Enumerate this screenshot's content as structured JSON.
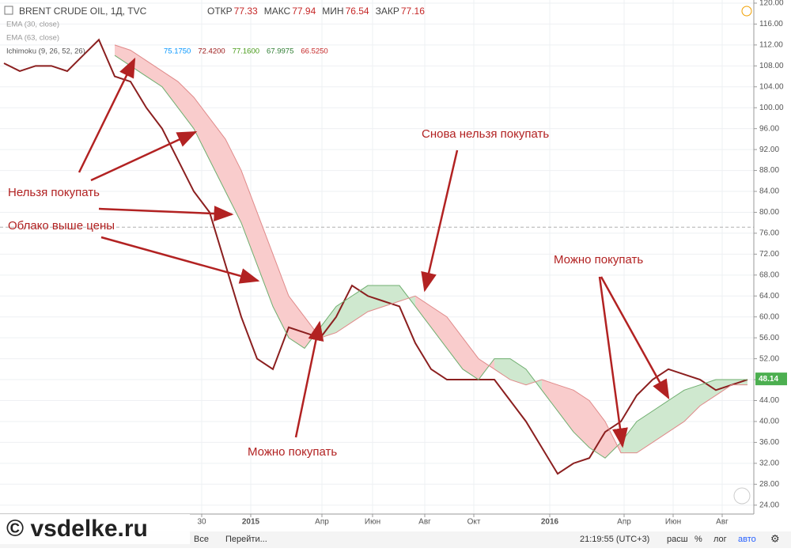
{
  "chart_data": {
    "type": "ichimoku",
    "title": "BRENT CRUDE OIL, 1Д, TVC",
    "ohlc": [
      {
        "label": "ОТКР",
        "value": 77.33
      },
      {
        "label": "МАКС",
        "value": 77.94
      },
      {
        "label": "МИН",
        "value": 76.54
      },
      {
        "label": "ЗАКР",
        "value": 77.16
      }
    ],
    "indicators": [
      {
        "label": "EMA (30, close)"
      },
      {
        "label": "EMA (63, close)"
      },
      {
        "label": "Ichimoku (9, 26, 52, 26)"
      }
    ],
    "ichimoku_values": [
      {
        "value": 75.175,
        "label": "75.1750",
        "color": "#0496ff"
      },
      {
        "value": 72.42,
        "label": "72.4200",
        "color": "#991515"
      },
      {
        "value": 77.16,
        "label": "77.1600",
        "color": "#459915"
      },
      {
        "value": 67.9975,
        "label": "67.9975",
        "color": "#2e7d32"
      },
      {
        "value": 66.525,
        "label": "66.5250",
        "color": "#c62828"
      }
    ],
    "close_level": 77.16,
    "last_price": 48.14,
    "series": [
      {
        "color": "#8b1f1f",
        "values": [
          108.5,
          107,
          108,
          108,
          107,
          110,
          113,
          106,
          105,
          100,
          96,
          90,
          84,
          80,
          70,
          60,
          52,
          50,
          58,
          57,
          56,
          60,
          66,
          64,
          63,
          62,
          55,
          50,
          48,
          48,
          48,
          48,
          44,
          40,
          35,
          30,
          32,
          33,
          38,
          40,
          45,
          48,
          50,
          49,
          48,
          46,
          47,
          48
        ]
      },
      {
        "color": "#6fae6f",
        "values": [
          null,
          null,
          null,
          null,
          null,
          null,
          null,
          110,
          108,
          106,
          104,
          100,
          96,
          90,
          84,
          78,
          70,
          62,
          56,
          54,
          58,
          62,
          64,
          66,
          66,
          66,
          62,
          58,
          54,
          50,
          48,
          52,
          52,
          50,
          46,
          42,
          38,
          35,
          33,
          36,
          40,
          42,
          44,
          46,
          47,
          48,
          48,
          48
        ]
      },
      {
        "color": "#e08a8a",
        "values": [
          null,
          null,
          null,
          null,
          null,
          null,
          null,
          112,
          111,
          109,
          107,
          105,
          102,
          98,
          94,
          88,
          80,
          72,
          64,
          60,
          56,
          57,
          59,
          61,
          62,
          63,
          64,
          62,
          60,
          56,
          52,
          50,
          48,
          47,
          48,
          47,
          46,
          44,
          40,
          34,
          34,
          36,
          38,
          40,
          43,
          45,
          47,
          47
        ]
      }
    ],
    "cloud_colors": {
      "up": "#cfe8cf",
      "down": "#f9cccc"
    },
    "xlim": [
      -0.25,
      47.25
    ],
    "xticks": [
      {
        "value": 12.5,
        "label": "30"
      },
      {
        "value": 15.6,
        "label": "2015"
      },
      {
        "value": 20.1,
        "label": "Апр"
      },
      {
        "value": 23.3,
        "label": "Июн"
      },
      {
        "value": 26.6,
        "label": "Авг"
      },
      {
        "value": 29.7,
        "label": "Окт"
      },
      {
        "value": 34.5,
        "label": "2016"
      },
      {
        "value": 39.2,
        "label": "Апр"
      },
      {
        "value": 42.3,
        "label": "Июн"
      },
      {
        "value": 45.4,
        "label": "Авг"
      }
    ],
    "ylim": [
      22.3,
      120.6
    ],
    "yticks": [
      {
        "value": 24,
        "label": "24.00"
      },
      {
        "value": 28,
        "label": "28.00"
      },
      {
        "value": 32,
        "label": "32.00"
      },
      {
        "value": 36,
        "label": "36.00"
      },
      {
        "value": 40,
        "label": "40.00"
      },
      {
        "value": 44,
        "label": "44.00"
      },
      {
        "value": 48,
        "label": "48.00"
      },
      {
        "value": 52,
        "label": "52.00"
      },
      {
        "value": 56,
        "label": "56.00"
      },
      {
        "value": 60,
        "label": "60.00"
      },
      {
        "value": 64,
        "label": "64.00"
      },
      {
        "value": 68,
        "label": "68.00"
      },
      {
        "value": 72,
        "label": "72.00"
      },
      {
        "value": 76,
        "label": "76.00"
      },
      {
        "value": 80,
        "label": "80.00"
      },
      {
        "value": 84,
        "label": "84.00"
      },
      {
        "value": 88,
        "label": "88.00"
      },
      {
        "value": 92,
        "label": "92.00"
      },
      {
        "value": 96,
        "label": "96.00"
      },
      {
        "value": 100,
        "label": "100.00"
      },
      {
        "value": 104,
        "label": "104.00"
      },
      {
        "value": 108,
        "label": "108.00"
      },
      {
        "value": 112,
        "label": "112.00"
      },
      {
        "value": 116,
        "label": "116.00"
      },
      {
        "value": 120,
        "label": "120.00"
      }
    ],
    "grid": true,
    "annotations": [
      "Нельзя покупать",
      "Облако выше цены",
      "Снова нельзя покупать",
      "Можно покупать",
      "Можно покупать"
    ]
  },
  "toolbar": {
    "range": "Все",
    "goto": "Перейти...",
    "time": "21:19:55 (UTC+3)",
    "options": [
      "расш",
      "%",
      "лог",
      "авто"
    ]
  },
  "watermark": "© vsdelke.ru"
}
